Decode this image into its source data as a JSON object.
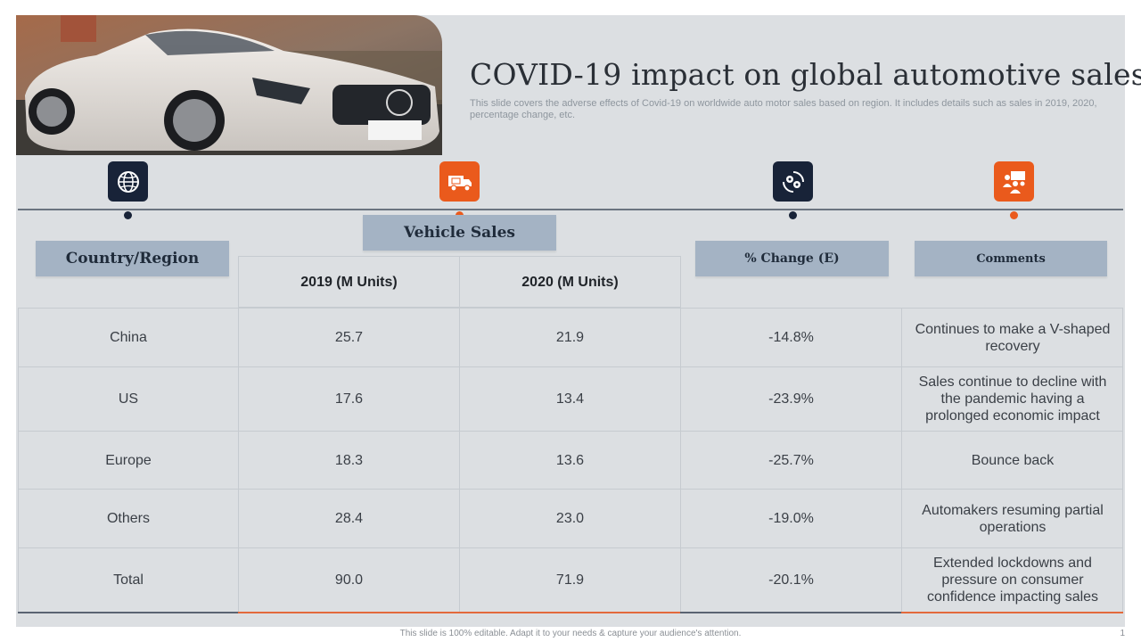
{
  "title": "COVID-19 impact on global automotive sales",
  "subtitle": "This slide covers the adverse effects of Covid-19 on worldwide auto motor sales based on region. It includes details such as sales in 2019, 2020, percentage change, etc.",
  "icons": [
    "globe-icon",
    "delivery-truck-icon",
    "gears-cycle-icon",
    "team-presentation-icon"
  ],
  "headers": {
    "country": "Country/Region",
    "vehicle_sales": "Vehicle Sales",
    "y2019": "2019 (M Units)",
    "y2020": "2020 (M Units)",
    "change": "% Change (E)",
    "comments": "Comments"
  },
  "rows": [
    {
      "region": "China",
      "y2019": "25.7",
      "y2020": "21.9",
      "change": "-14.8%",
      "comment": "Continues to make a V-shaped recovery"
    },
    {
      "region": "US",
      "y2019": "17.6",
      "y2020": "13.4",
      "change": "-23.9%",
      "comment": "Sales continue to decline with the pandemic having a prolonged economic impact"
    },
    {
      "region": "Europe",
      "y2019": "18.3",
      "y2020": "13.6",
      "change": "-25.7%",
      "comment": "Bounce back"
    },
    {
      "region": "Others",
      "y2019": "28.4",
      "y2020": "23.0",
      "change": "-19.0%",
      "comment": "Automakers resuming partial operations"
    },
    {
      "region": "Total",
      "y2019": "90.0",
      "y2020": "71.9",
      "change": "-20.1%",
      "comment": "Extended lockdowns and pressure on consumer confidence impacting sales"
    }
  ],
  "footer": "This slide is 100% editable. Adapt it to your needs & capture your audience's attention.",
  "page_number": "1",
  "colors": {
    "navy": "#182338",
    "orange": "#ea5a1c",
    "pill": "#a4b3c4",
    "background": "#dcdfe2"
  }
}
